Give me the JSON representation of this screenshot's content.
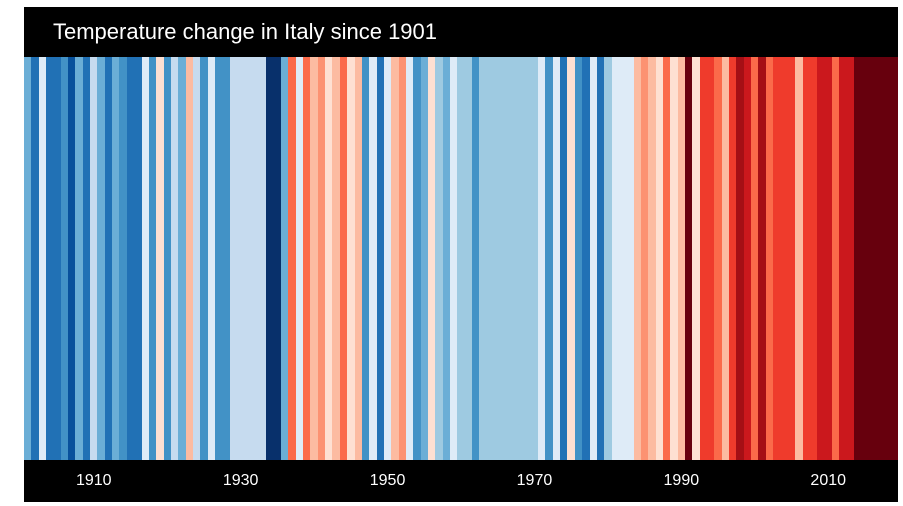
{
  "title": "Temperature change in Italy since 1901",
  "chart_data": {
    "type": "heatmap",
    "title": "Temperature change in Italy since 1901",
    "xlabel": "",
    "ylabel": "",
    "x_range": [
      1901,
      2019
    ],
    "tick_labels": [
      "1910",
      "1930",
      "1950",
      "1970",
      "1990",
      "2010"
    ],
    "tick_values": [
      1910,
      1930,
      1950,
      1970,
      1990,
      2010
    ],
    "color_scale": {
      "cold_to_warm": [
        "#08306b",
        "#08519c",
        "#2171b5",
        "#4292c6",
        "#6baed6",
        "#9ecae1",
        "#c6dbef",
        "#deebf7",
        "#fee0d2",
        "#fcbba1",
        "#fc9272",
        "#fb6a4a",
        "#ef3b2c",
        "#cb181d",
        "#a50f15",
        "#67000d"
      ]
    },
    "stripe_colors": [
      "#6baed6",
      "#2171b5",
      "#deebf7",
      "#2171b5",
      "#2171b5",
      "#4292c6",
      "#08519c",
      "#6baed6",
      "#2171b5",
      "#c6dbef",
      "#6baed6",
      "#2171b5",
      "#6baed6",
      "#4292c6",
      "#2171b5",
      "#2171b5",
      "#deebf7",
      "#4292c6",
      "#fee0d2",
      "#4292c6",
      "#c6dbef",
      "#6baed6",
      "#fcbba1",
      "#c6dbef",
      "#4292c6",
      "#deebf7",
      "#4292c6",
      "#4292c6",
      "#c6dbef",
      "#c6dbef",
      "#c6dbef",
      "#c6dbef",
      "#c6dbef",
      "#08306b",
      "#08306b",
      "#6baed6",
      "#fb6a4a",
      "#deebf7",
      "#fb6a4a",
      "#fcbba1",
      "#fc9272",
      "#fee0d2",
      "#fcbba1",
      "#fb6a4a",
      "#fee0d2",
      "#fcbba1",
      "#4292c6",
      "#deebf7",
      "#2171b5",
      "#deebf7",
      "#fcbba1",
      "#fc9272",
      "#deebf7",
      "#4292c6",
      "#6baed6",
      "#fee0d2",
      "#9ecae1",
      "#6baed6",
      "#deebf7",
      "#9ecae1",
      "#9ecae1",
      "#4292c6",
      "#9ecae1",
      "#9ecae1",
      "#9ecae1",
      "#9ecae1",
      "#9ecae1",
      "#9ecae1",
      "#9ecae1",
      "#9ecae1",
      "#deebf7",
      "#4292c6",
      "#deebf7",
      "#2171b5",
      "#fee0d2",
      "#4292c6",
      "#2171b5",
      "#deebf7",
      "#2171b5",
      "#9ecae1",
      "#deebf7",
      "#deebf7",
      "#deebf7",
      "#fcbba1",
      "#fc9272",
      "#fcbba1",
      "#fee0d2",
      "#fb6a4a",
      "#fee0d2",
      "#fcbba1",
      "#67000d",
      "#fee0d2",
      "#ef3b2c",
      "#ef3b2c",
      "#fb6a4a",
      "#fcbba1",
      "#ef3b2c",
      "#a50f15",
      "#cb181d",
      "#fb6a4a",
      "#a50f15",
      "#fb6a4a",
      "#ef3b2c",
      "#ef3b2c",
      "#ef3b2c",
      "#fcbba1",
      "#ef3b2c",
      "#ef3b2c",
      "#cb181d",
      "#cb181d",
      "#fb6a4a",
      "#cb181d",
      "#cb181d",
      "#67000d",
      "#67000d",
      "#67000d",
      "#67000d",
      "#67000d",
      "#67000d"
    ]
  }
}
